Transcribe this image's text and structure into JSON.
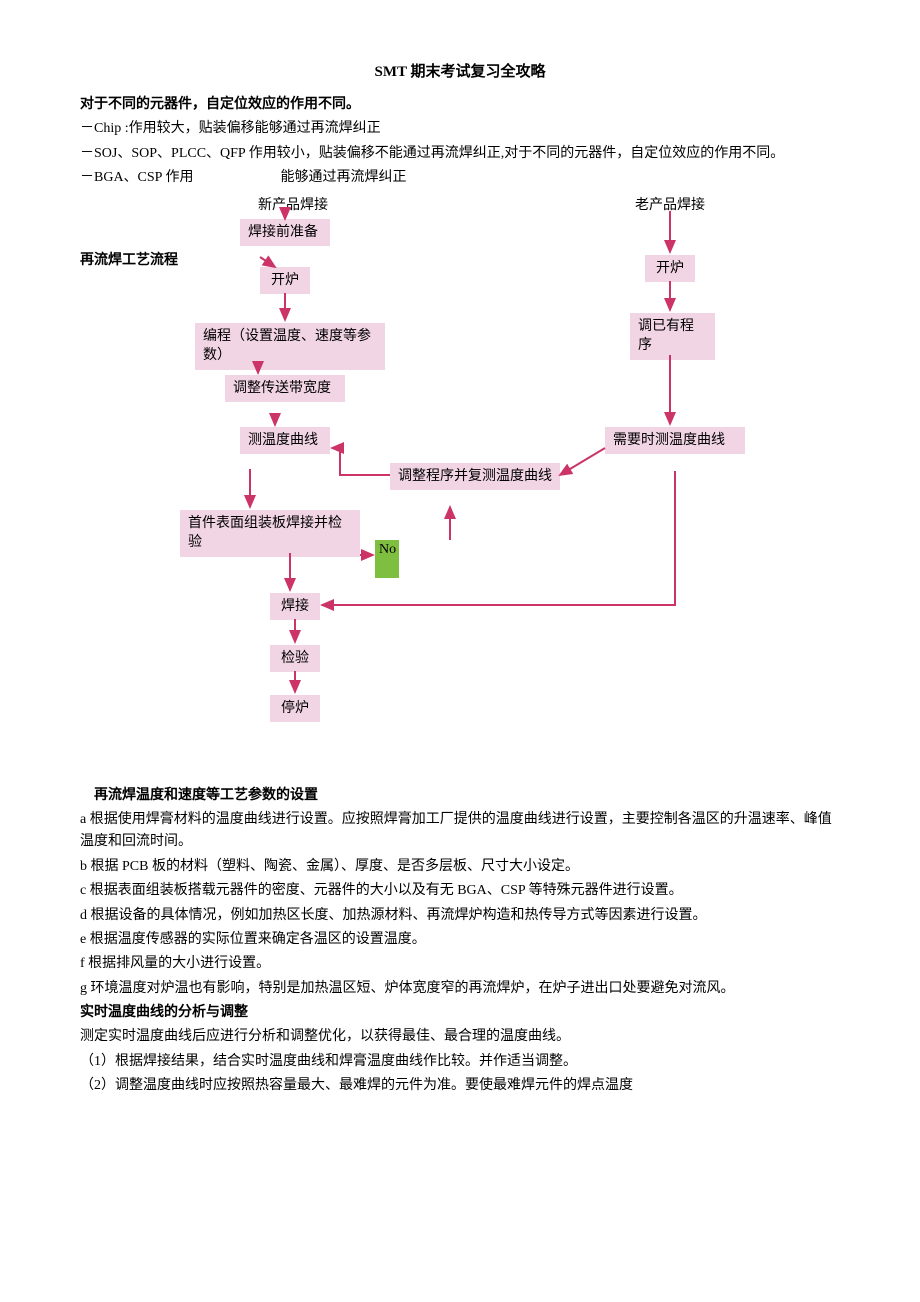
{
  "title": "SMT 期末考试复习全攻略",
  "intro": {
    "head": "对于不同的元器件，自定位效应的作用不同。",
    "line1": "－Chip  :作用较大，贴装偏移能够通过再流焊纠正",
    "line2": "－SOJ、SOP、PLCC、QFP 作用较小，贴装偏移不能通过再流焊纠正,对于不同的元器件，自定位效应的作用不同。",
    "line3a": "－BGA、CSP 作用",
    "line3b": "能够通过再流焊纠正"
  },
  "flow": {
    "left_header": "新产品焊接",
    "right_header": "老产品焊接",
    "side_label": "再流焊工艺流程",
    "colors": {
      "node_bg": "#f2d5e5",
      "arrow": "#cc3366",
      "border": "#d94a8c",
      "green": "#7fbf3f"
    },
    "nodes": {
      "prep": "焊接前准备",
      "open_l": "开炉",
      "open_r": "开炉",
      "program": "编程（设置温度、速度等参数）",
      "call_prog": "调已有程序",
      "adjust_belt": "调整传送带宽度",
      "measure_l": "测温度曲线",
      "measure_r": "需要时测温度曲线",
      "adjust_remeasure": "调整程序并复测温度曲线",
      "first_inspect": "首件表面组装板焊接并检验",
      "no": "No",
      "weld": "焊接",
      "inspect": "检验",
      "stop": "停炉"
    }
  },
  "section2": {
    "head": "再流焊温度和速度等工艺参数的设置",
    "a": "a 根据使用焊膏材料的温度曲线进行设置。应按照焊膏加工厂提供的温度曲线进行设置，主要控制各温区的升温速率、峰值温度和回流时间。",
    "b": " b 根据 PCB 板的材料（塑料、陶瓷、金属）、厚度、是否多层板、尺寸大小设定。",
    "c": " c 根据表面组装板搭载元器件的密度、元器件的大小以及有无 BGA、CSP 等特殊元器件进行设置。",
    "d": "d 根据设备的具体情况，例如加热区长度、加热源材料、再流焊炉构造和热传导方式等因素进行设置。",
    "e": "e 根据温度传感器的实际位置来确定各温区的设置温度。",
    "f": "f 根据排风量的大小进行设置。",
    "g": "g 环境温度对炉温也有影响，特别是加热温区短、炉体宽度窄的再流焊炉，在炉子进出口处要避免对流风。"
  },
  "section3": {
    "head": "实时温度曲线的分析与调整",
    "p0": "测定实时温度曲线后应进行分析和调整优化，以获得最佳、最合理的温度曲线。",
    "p1": "（1）根据焊接结果，结合实时温度曲线和焊膏温度曲线作比较。并作适当调整。",
    "p2": "（2）调整温度曲线时应按照热容量最大、最难焊的元件为准。要使最难焊元件的焊点温度"
  }
}
